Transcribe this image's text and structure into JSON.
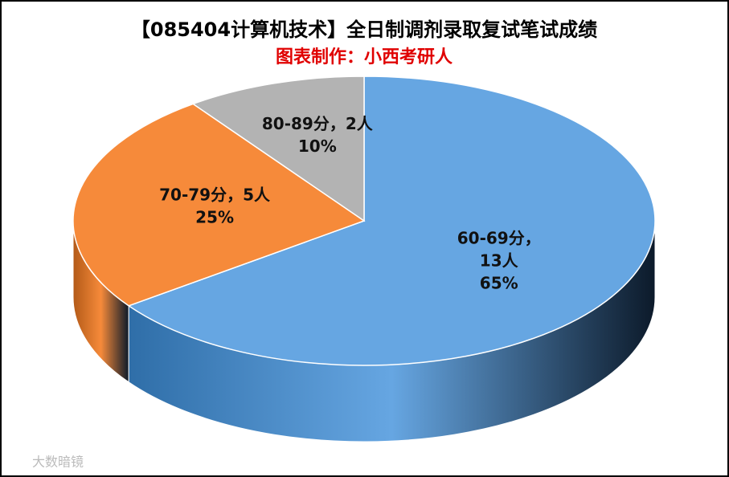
{
  "chart_data": {
    "type": "pie",
    "title": "【085404计算机技术】全日制调剂录取复试笔试成绩",
    "subtitle": "图表制作：小西考研人",
    "categories": [
      "60-69分",
      "70-79分",
      "80-89分"
    ],
    "label_separator": "，",
    "values": [
      13,
      5,
      2
    ],
    "value_labels": [
      "13人",
      "5人",
      "2人"
    ],
    "percents": [
      65,
      25,
      10
    ],
    "percent_labels": [
      "65%",
      "25%",
      "10%"
    ],
    "colors": [
      "#66a6e2",
      "#f68a3a",
      "#b3b3b3"
    ],
    "side_colors": [
      "#2f6ea8",
      "#b35a18",
      "#7d7d7d"
    ],
    "start_angle": -90,
    "watermark": "大数暗镜"
  }
}
